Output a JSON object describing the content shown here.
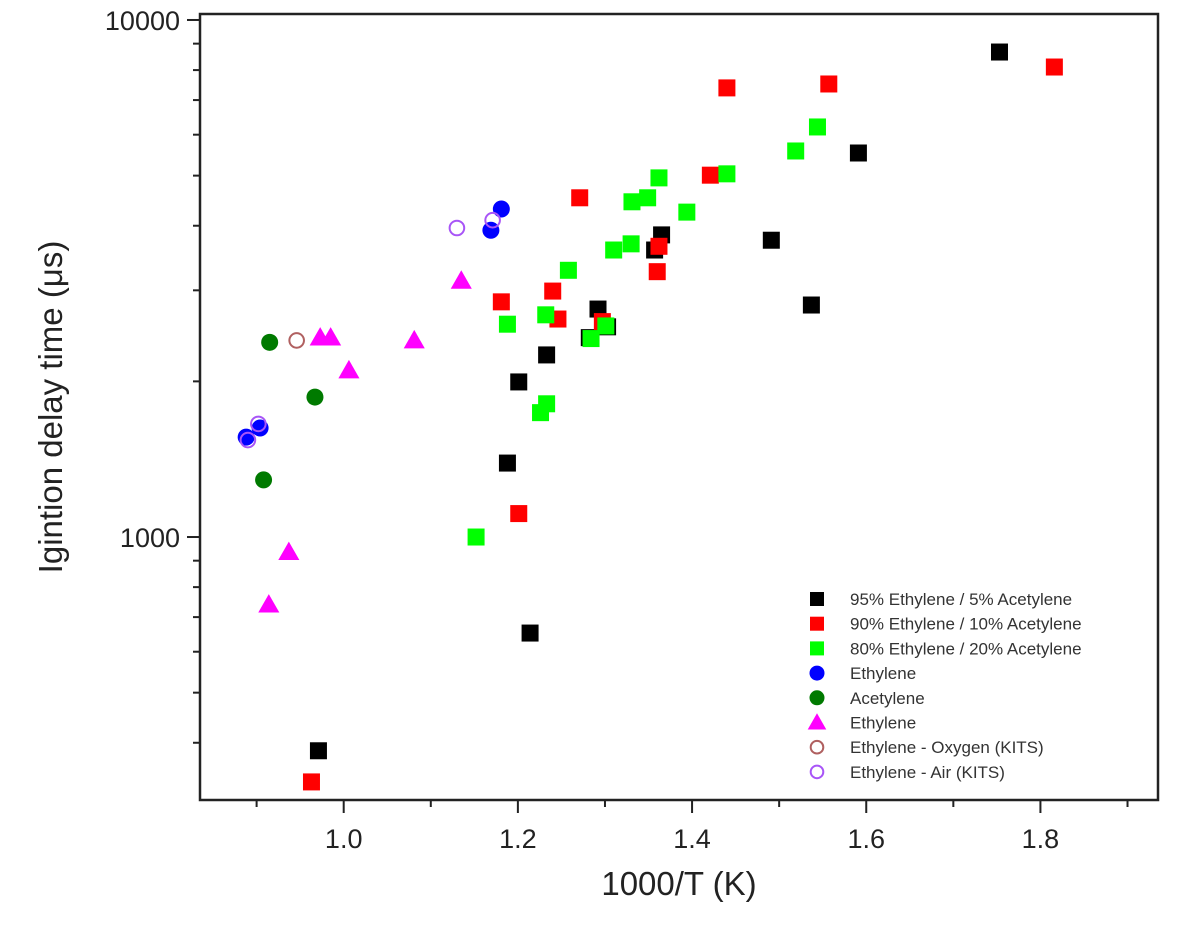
{
  "chart_data": {
    "type": "scatter",
    "title": "",
    "xlabel": "1000/T (K)",
    "ylabel": "Igintion delay time (μs)",
    "xscale": "linear",
    "yscale": "log",
    "xlim": [
      0.835,
      1.935
    ],
    "ylim": [
      310,
      10270
    ],
    "xticks": [
      1.0,
      1.2,
      1.4,
      1.6,
      1.8
    ],
    "xtick_labels": [
      "1.0",
      "1.2",
      "1.4",
      "1.6",
      "1.8"
    ],
    "yticks": [
      1000,
      10000
    ],
    "ytick_labels": [
      "1000",
      "10000"
    ],
    "grid": false,
    "legend_position": "bottom-right",
    "series": [
      {
        "name": "95% Ethylene / 5% Acetylene",
        "marker": "square",
        "color": "#000000",
        "filled": true,
        "x": [
          1.753,
          1.591,
          1.491,
          1.365,
          1.357,
          1.537,
          1.292,
          1.303,
          1.282,
          1.233,
          1.201,
          1.188,
          1.214,
          0.971
        ],
        "y": [
          8670,
          5530,
          3750,
          3840,
          3590,
          2810,
          2760,
          2550,
          2430,
          2250,
          1995,
          1390,
          652,
          386
        ]
      },
      {
        "name": "90% Ethylene / 10% Acetylene",
        "marker": "square",
        "color": "#ff0000",
        "filled": true,
        "x": [
          1.816,
          1.557,
          1.44,
          1.421,
          1.271,
          1.362,
          1.36,
          1.181,
          1.24,
          1.246,
          1.297,
          1.201,
          0.963
        ],
        "y": [
          8110,
          7520,
          7390,
          5010,
          4530,
          3650,
          3260,
          2850,
          2990,
          2640,
          2610,
          1110,
          336
        ]
      },
      {
        "name": "80% Ethylene / 20% Acetylene",
        "marker": "square",
        "color": "#00ff00",
        "filled": true,
        "x": [
          1.544,
          1.519,
          1.44,
          1.362,
          1.349,
          1.331,
          1.394,
          1.33,
          1.31,
          1.258,
          1.232,
          1.188,
          1.301,
          1.284,
          1.233,
          1.226,
          1.152
        ],
        "y": [
          6210,
          5580,
          5040,
          4950,
          4530,
          4450,
          4250,
          3690,
          3590,
          3280,
          2690,
          2580,
          2560,
          2420,
          1810,
          1740,
          1000
        ]
      },
      {
        "name": "Ethylene",
        "marker": "circle",
        "color": "#0000ff",
        "filled": true,
        "x": [
          1.181,
          1.169,
          0.904,
          0.888
        ],
        "y": [
          4310,
          3920,
          1625,
          1560
        ]
      },
      {
        "name": "Acetylene",
        "marker": "circle",
        "color": "#007a00",
        "filled": true,
        "x": [
          0.915,
          0.967,
          0.908
        ],
        "y": [
          2380,
          1865,
          1290
        ]
      },
      {
        "name": "Ethylene",
        "marker": "triangle",
        "color": "#ff00ff",
        "filled": true,
        "x": [
          0.973,
          0.985,
          1.081,
          1.006,
          1.135,
          0.937,
          0.914
        ],
        "y": [
          2430,
          2430,
          2400,
          2100,
          3130,
          935,
          740
        ]
      },
      {
        "name": "Ethylene - Oxygen (KITS)",
        "marker": "circle",
        "color": "#b06060",
        "filled": false,
        "x": [
          0.946
        ],
        "y": [
          2400
        ]
      },
      {
        "name": "Ethylene - Air (KITS)",
        "marker": "circle",
        "color": "#a855f7",
        "filled": false,
        "x": [
          1.13,
          1.171,
          0.902,
          0.89
        ],
        "y": [
          3960,
          4100,
          1655,
          1540
        ]
      }
    ]
  }
}
